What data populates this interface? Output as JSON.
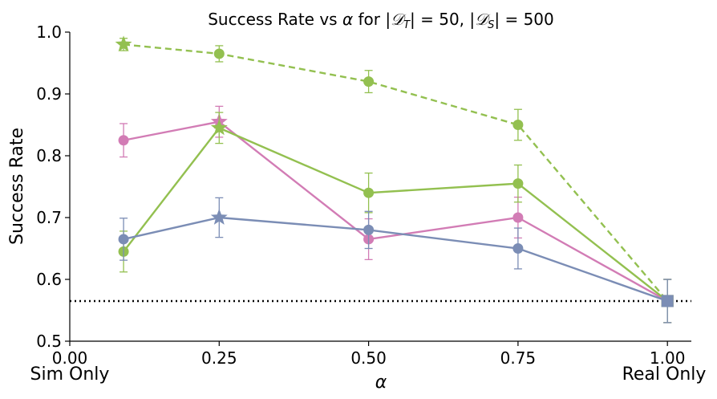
{
  "chart_data": {
    "type": "line",
    "title": "Success Rate vs α for |𝒟_T| = 50, |𝒟_S| = 500",
    "title_parts": {
      "prefix": "Success Rate vs ",
      "alpha": "α",
      "for": " for ",
      "left_bar": "|",
      "dt": "𝒟",
      "dt_sub": "T",
      "mid": "| = 50, |",
      "ds": "𝒟",
      "ds_sub": "S",
      "end": "| = 500"
    },
    "xlabel": "α",
    "ylabel": "Success Rate",
    "xlim": [
      0.0,
      1.04
    ],
    "ylim": [
      0.5,
      1.0
    ],
    "x_ticks": [
      0.0,
      0.25,
      0.5,
      0.75,
      1.0
    ],
    "x_tick_labels": [
      "0.00",
      "0.25",
      "0.50",
      "0.75",
      "1.00"
    ],
    "y_ticks": [
      0.5,
      0.6,
      0.7,
      0.8,
      0.9,
      1.0
    ],
    "y_tick_labels": [
      "0.5",
      "0.6",
      "0.7",
      "0.8",
      "0.9",
      "1.0"
    ],
    "annotations": {
      "left": "Sim Only",
      "right": "Real Only"
    },
    "baseline": {
      "y": 0.565,
      "style": "dotted",
      "color": "#000000"
    },
    "series": [
      {
        "name": "green-dashed",
        "color": "#93c050",
        "dashed": true,
        "x": [
          0.09,
          0.25,
          0.5,
          0.75,
          1.0
        ],
        "values": [
          0.98,
          0.965,
          0.92,
          0.85,
          0.565
        ],
        "err": [
          0.01,
          0.013,
          0.018,
          0.025,
          0.035
        ],
        "markers": [
          "star",
          "circle",
          "circle",
          "circle",
          "square"
        ]
      },
      {
        "name": "pink-solid",
        "color": "#d27cb5",
        "dashed": false,
        "x": [
          0.09,
          0.25,
          0.5,
          0.75,
          1.0
        ],
        "values": [
          0.825,
          0.855,
          0.665,
          0.7,
          0.565
        ],
        "err": [
          0.027,
          0.025,
          0.033,
          0.033,
          0.035
        ],
        "markers": [
          "circle",
          "star",
          "circle",
          "circle",
          "square"
        ]
      },
      {
        "name": "green-solid",
        "color": "#93c050",
        "dashed": false,
        "x": [
          0.09,
          0.25,
          0.5,
          0.75,
          1.0
        ],
        "values": [
          0.645,
          0.845,
          0.74,
          0.755,
          0.565
        ],
        "err": [
          0.033,
          0.025,
          0.032,
          0.03,
          0.035
        ],
        "markers": [
          "circle",
          "star",
          "circle",
          "circle",
          "square"
        ]
      },
      {
        "name": "blue-solid",
        "color": "#7b8db5",
        "dashed": false,
        "x": [
          0.09,
          0.25,
          0.5,
          0.75,
          1.0
        ],
        "values": [
          0.665,
          0.7,
          0.68,
          0.65,
          0.565
        ],
        "err": [
          0.034,
          0.032,
          0.03,
          0.033,
          0.035
        ],
        "markers": [
          "circle",
          "star",
          "circle",
          "circle",
          "square"
        ]
      }
    ]
  }
}
